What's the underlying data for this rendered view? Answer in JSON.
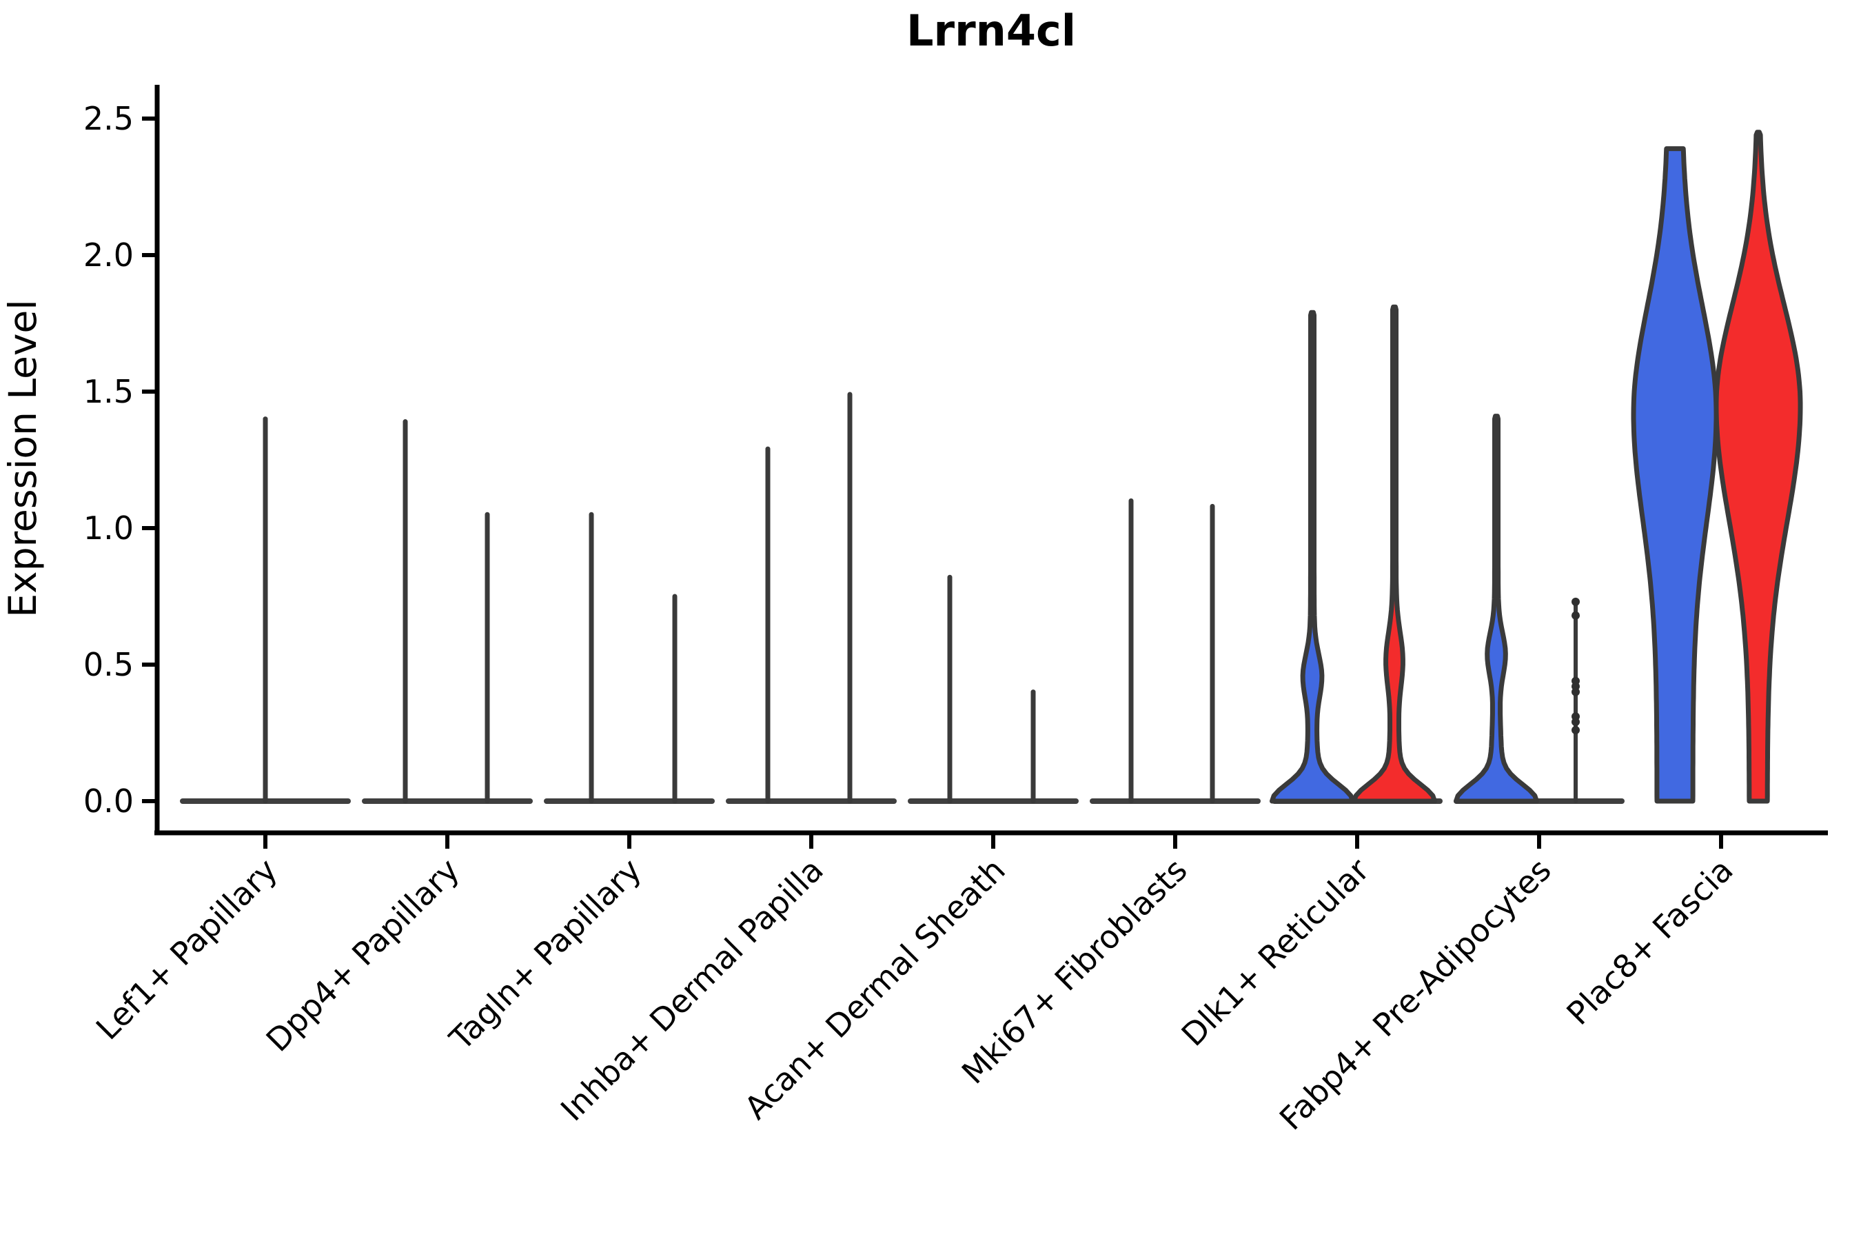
{
  "chart_data": {
    "type": "violin",
    "title": "Lrrn4cl",
    "ylabel": "Expression Level",
    "xlabel": "",
    "ylim": [
      0,
      2.62
    ],
    "yticks": [
      {
        "value": 0.0,
        "label": "0.0"
      },
      {
        "value": 0.5,
        "label": "0.5"
      },
      {
        "value": 1.0,
        "label": "1.0"
      },
      {
        "value": 1.5,
        "label": "1.5"
      },
      {
        "value": 2.0,
        "label": "2.0"
      },
      {
        "value": 2.5,
        "label": "2.5"
      }
    ],
    "grid": false,
    "legend": "none",
    "colors": {
      "blue_group": "#4169E1",
      "red_group": "#F32C2C",
      "outline": "#3A3A3A",
      "baseline": "#3F3F3F",
      "axis": "#000000",
      "point": "#2F2F2F"
    },
    "split_groups": [
      "blue",
      "red"
    ],
    "categories": [
      {
        "label": "Lef1+ Papillary",
        "violins": [
          {
            "group": "blue",
            "type": "spike",
            "max": 1.4,
            "offset": 0
          },
          {
            "group": "red",
            "type": "flat",
            "max": 0.0,
            "offset": 58
          }
        ]
      },
      {
        "label": "Dpp4+ Papillary",
        "violins": [
          {
            "group": "blue",
            "type": "spike",
            "max": 1.39,
            "offset": -61
          },
          {
            "group": "red",
            "type": "spike",
            "max": 1.05,
            "offset": 58
          }
        ]
      },
      {
        "label": "Tagln+ Papillary",
        "violins": [
          {
            "group": "blue",
            "type": "spike",
            "max": 1.05,
            "offset": -55
          },
          {
            "group": "red",
            "type": "spike",
            "max": 0.75,
            "offset": 66
          }
        ]
      },
      {
        "label": "Inhba+ Dermal Papilla",
        "violins": [
          {
            "group": "blue",
            "type": "spike",
            "max": 1.29,
            "offset": -63
          },
          {
            "group": "red",
            "type": "spike",
            "max": 1.49,
            "offset": 56
          }
        ]
      },
      {
        "label": "Acan+ Dermal Sheath",
        "violins": [
          {
            "group": "blue",
            "type": "spike",
            "max": 0.82,
            "offset": -63
          },
          {
            "group": "red",
            "type": "spike",
            "max": 0.4,
            "offset": 58
          }
        ]
      },
      {
        "label": "Mki67+ Fibroblasts",
        "violins": [
          {
            "group": "blue",
            "type": "spike",
            "max": 1.1,
            "offset": -64
          },
          {
            "group": "red",
            "type": "spike",
            "max": 1.08,
            "offset": 54
          }
        ]
      },
      {
        "label": "Dlk1+ Reticular",
        "violins": [
          {
            "group": "blue",
            "type": "bulge",
            "max": 1.79,
            "offset": -65,
            "shape": {
              "tail": 2.5,
              "base": 50,
              "baseSigma": 0.085,
              "neck": 6,
              "neckSigma": 0.38,
              "amp": 10,
              "c": 0.46,
              "s": 0.11
            }
          },
          {
            "group": "red",
            "type": "bulge",
            "max": 1.81,
            "offset": 54,
            "shape": {
              "tail": 2.5,
              "base": 50,
              "baseSigma": 0.085,
              "neck": 6,
              "neckSigma": 0.38,
              "amp": 9,
              "c": 0.52,
              "s": 0.14
            }
          }
        ]
      },
      {
        "label": "Fabp4+ Pre-Adipocytes",
        "violins": [
          {
            "group": "blue",
            "type": "bulge",
            "max": 1.41,
            "offset": -62,
            "shape": {
              "tail": 2.5,
              "base": 50,
              "baseSigma": 0.085,
              "neck": 6,
              "neckSigma": 0.38,
              "amp": 10,
              "c": 0.54,
              "s": 0.11
            }
          },
          {
            "group": "red",
            "type": "points_line",
            "max": 0.73,
            "offset": 53,
            "points": [
              0.73,
              0.68,
              0.44,
              0.42,
              0.4,
              0.31,
              0.29,
              0.26
            ]
          }
        ]
      },
      {
        "label": "Plac8+ Fascia",
        "violins": [
          {
            "group": "blue",
            "type": "big",
            "max": 2.39,
            "offset": -67,
            "flat_top": true,
            "shape": {
              "lower": {
                "b": 26,
                "amp": 34,
                "c": 1.42,
                "s": 0.55
              },
              "upper": {
                "b": 10,
                "amp": 50,
                "c": 1.42,
                "s": 0.55
              }
            }
          },
          {
            "group": "red",
            "type": "big",
            "max": 2.45,
            "offset": 54,
            "flat_top": false,
            "shape": {
              "lower": {
                "b": 13,
                "amp": 48,
                "c": 1.45,
                "s": 0.6
              },
              "upper": {
                "b": 1.5,
                "amp": 59.5,
                "c": 1.45,
                "s": 0.52
              }
            }
          }
        ]
      }
    ]
  }
}
